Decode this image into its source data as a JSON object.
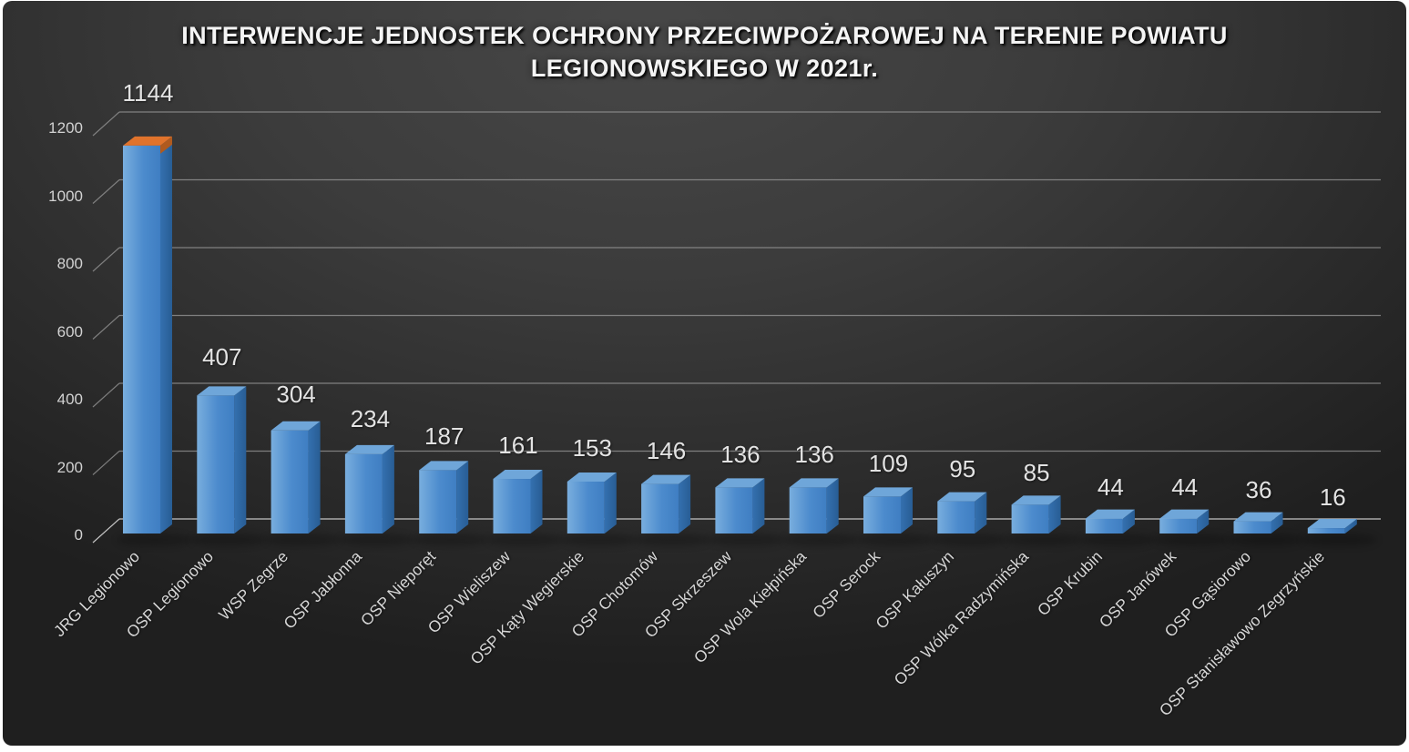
{
  "chart_data": {
    "type": "bar",
    "projection": "3d",
    "title": "INTERWENCJE JEDNOSTEK OCHRONY PRZECIWPOŻAROWEJ NA TERENIE POWIATU LEGIONOWSKIEGO W 2021r.",
    "categories": [
      "JRG Legionowo",
      "OSP Legionowo",
      "WSP Zegrze",
      "OSP Jabłonna",
      "OSP Nieporęt",
      "OSP Wieliszew",
      "OSP Kąty Wegierskie",
      "OSP Chotomów",
      "OSP Skrzeszew",
      "OSP Wola Kiełpińska",
      "OSP Serock",
      "OSP Kałuszyn",
      "OSP Wólka Radzymińska",
      "OSP Krubin",
      "OSP Janówek",
      "OSP Gąsiorowo",
      "OSP Stanisławowo Zegrzyńskie"
    ],
    "values": [
      1144,
      407,
      304,
      234,
      187,
      161,
      153,
      146,
      136,
      136,
      109,
      95,
      85,
      44,
      44,
      36,
      16
    ],
    "ylim": [
      0,
      1200
    ],
    "yticks": [
      0,
      200,
      400,
      600,
      800,
      1000,
      1200
    ],
    "grid": true,
    "legend": false,
    "data_labels": true,
    "colors": {
      "bar_front_light": "#79aede",
      "bar_front_mid": "#4c8bcd",
      "bar_front_dark": "#3f7ec2",
      "bar_top": "#6fa6d9",
      "bar_side_light": "#3470af",
      "bar_side_dark": "#285d94",
      "first_bar_cap_top": "#e0732c",
      "first_bar_cap_side": "#b05a1e",
      "gridline": "#9e9e9e",
      "baseline": "#cccccc",
      "tick_label": "#d2d2d2",
      "value_label": "#e3e3e3",
      "category_label": "#d6d6d6",
      "title": "#f4f4f4",
      "background_center": "#474747",
      "background_edge": "#1f1f1f"
    }
  }
}
